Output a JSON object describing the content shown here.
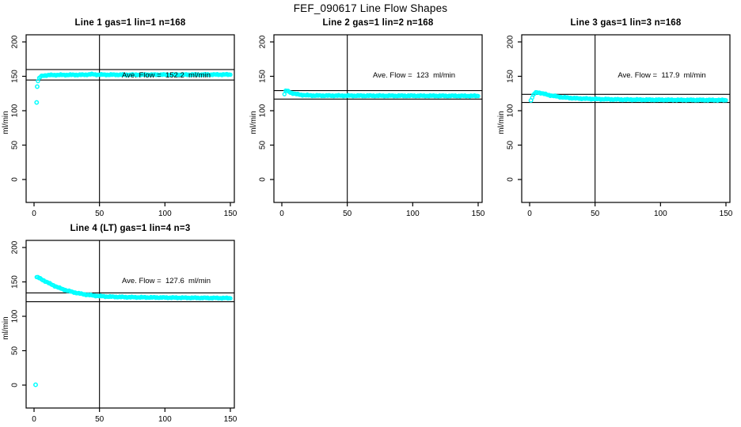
{
  "main_title": "FEF_090617  Line Flow Shapes",
  "colors": {
    "points": "#00FFFF",
    "axis": "#000000",
    "background": "#FFFFFF"
  },
  "axes": {
    "y_axis_label": "ml/min",
    "x_ticks": [
      0,
      50,
      100,
      150
    ],
    "y_ticks": [
      0,
      50,
      100,
      150,
      200
    ],
    "x_range": [
      0,
      150
    ],
    "y_range": [
      0,
      200
    ],
    "vertical_reference_x": 50
  },
  "chart_data": [
    {
      "type": "scatter",
      "title": "Line 1 gas=1 lin=1 n=168",
      "n": 168,
      "ave_flow": 152.2,
      "ave_flow_label": "Ave. Flow =  152.2  ml/min",
      "reference_lines": [
        159.8,
        144.6
      ],
      "series_keypoints": [
        [
          3,
          143
        ],
        [
          4,
          147.5
        ],
        [
          5,
          149.5
        ],
        [
          6,
          150.5
        ],
        [
          8,
          151.3
        ],
        [
          12,
          151.8
        ],
        [
          20,
          152
        ],
        [
          38,
          152.2
        ],
        [
          44,
          153
        ],
        [
          48,
          152.4
        ],
        [
          60,
          152.3
        ],
        [
          100,
          152.4
        ],
        [
          150,
          152.6
        ]
      ],
      "outlier_points": [
        [
          2,
          112
        ],
        [
          2.4,
          135
        ]
      ]
    },
    {
      "type": "scatter",
      "title": "Line 2 gas=1 lin=2 n=168",
      "n": 168,
      "ave_flow": 123,
      "ave_flow_label": "Ave. Flow =  123  ml/min",
      "reference_lines": [
        129.2,
        116.9
      ],
      "series_keypoints": [
        [
          2,
          124
        ],
        [
          2.5,
          127
        ],
        [
          3,
          129
        ],
        [
          4,
          129
        ],
        [
          5,
          128
        ],
        [
          6,
          127
        ],
        [
          8,
          125.5
        ],
        [
          10,
          124.5
        ],
        [
          14,
          123.2
        ],
        [
          18,
          122.5
        ],
        [
          25,
          122
        ],
        [
          40,
          121.9
        ],
        [
          60,
          121.8
        ],
        [
          100,
          121.7
        ],
        [
          150,
          121.5
        ]
      ],
      "outlier_points": []
    },
    {
      "type": "scatter",
      "title": "Line 3 gas=1 lin=3 n=168",
      "n": 168,
      "ave_flow": 117.9,
      "ave_flow_label": "Ave. Flow =  117.9  ml/min",
      "reference_lines": [
        123.8,
        112.0
      ],
      "series_keypoints": [
        [
          2,
          119
        ],
        [
          3,
          123
        ],
        [
          4,
          125.5
        ],
        [
          5,
          126.5
        ],
        [
          6,
          126.8
        ],
        [
          8,
          126
        ],
        [
          10,
          125
        ],
        [
          14,
          123
        ],
        [
          18,
          121.5
        ],
        [
          25,
          119.5
        ],
        [
          35,
          118
        ],
        [
          50,
          117
        ],
        [
          70,
          116.2
        ],
        [
          100,
          115.8
        ],
        [
          130,
          115.6
        ],
        [
          150,
          115.4
        ]
      ],
      "outlier_points": [
        [
          1,
          115
        ]
      ]
    },
    {
      "type": "scatter",
      "title": "Line 4 (LT) gas=1 lin=4 n=3",
      "n": 3,
      "ave_flow": 127.6,
      "ave_flow_label": "Ave. Flow =  127.6  ml/min",
      "reference_lines": [
        134.0,
        121.2
      ],
      "series_keypoints": [
        [
          2,
          157
        ],
        [
          3,
          156.5
        ],
        [
          4,
          155.5
        ],
        [
          6,
          153.5
        ],
        [
          8,
          151.5
        ],
        [
          10,
          149.5
        ],
        [
          12,
          147.5
        ],
        [
          15,
          144.8
        ],
        [
          18,
          142.3
        ],
        [
          21,
          140
        ],
        [
          25,
          137.5
        ],
        [
          29,
          135.5
        ],
        [
          33,
          133.8
        ],
        [
          37,
          132.3
        ],
        [
          41,
          131.2
        ],
        [
          45,
          130.3
        ],
        [
          50,
          129.4
        ],
        [
          55,
          128.8
        ],
        [
          60,
          128.4
        ],
        [
          70,
          127.9
        ],
        [
          80,
          127.6
        ],
        [
          90,
          127.4
        ],
        [
          100,
          127.2
        ],
        [
          110,
          127
        ],
        [
          125,
          126.8
        ],
        [
          150,
          126.4
        ]
      ],
      "outlier_points": [
        [
          1.2,
          0.5
        ]
      ]
    }
  ]
}
